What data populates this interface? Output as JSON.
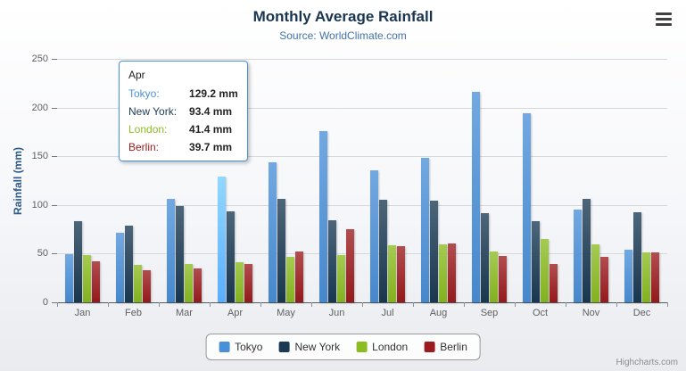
{
  "header": {
    "title": "Monthly Average Rainfall",
    "subtitle": "Source: WorldClimate.com"
  },
  "y_axis": {
    "title": "Rainfall (mm)",
    "ticks": [
      0,
      50,
      100,
      150,
      200,
      250
    ],
    "max": 250
  },
  "x_axis": {
    "categories": [
      "Jan",
      "Feb",
      "Mar",
      "Apr",
      "May",
      "Jun",
      "Jul",
      "Aug",
      "Sep",
      "Oct",
      "Nov",
      "Dec"
    ]
  },
  "tooltip": {
    "header": "Apr",
    "hover_point": {
      "series": "Tokyo",
      "category": "Apr"
    },
    "border_color": "#4a90d9",
    "rows": [
      {
        "name": "Tokyo:",
        "value": "129.2 mm",
        "color": "#4a90d9"
      },
      {
        "name": "New York:",
        "value": "93.4 mm",
        "color": "#1a3a54"
      },
      {
        "name": "London:",
        "value": "41.4 mm",
        "color": "#8bbc21"
      },
      {
        "name": "Berlin:",
        "value": "39.7 mm",
        "color": "#9c1b1e"
      }
    ]
  },
  "legend": {
    "items": [
      "Tokyo",
      "New York",
      "London",
      "Berlin"
    ]
  },
  "credits": "Highcharts.com",
  "chart_data": {
    "type": "bar",
    "title": "Monthly Average Rainfall",
    "subtitle": "Source: WorldClimate.com",
    "categories": [
      "Jan",
      "Feb",
      "Mar",
      "Apr",
      "May",
      "Jun",
      "Jul",
      "Aug",
      "Sep",
      "Oct",
      "Nov",
      "Dec"
    ],
    "series": [
      {
        "name": "Tokyo",
        "color": "#4a90d9",
        "values": [
          49.9,
          71.5,
          106.4,
          129.2,
          144.0,
          176.0,
          135.6,
          148.5,
          216.4,
          194.1,
          95.6,
          54.4
        ]
      },
      {
        "name": "New York",
        "color": "#1a3a54",
        "values": [
          83.6,
          78.8,
          98.5,
          93.4,
          106.0,
          84.5,
          105.0,
          104.3,
          91.2,
          83.5,
          106.6,
          92.3
        ]
      },
      {
        "name": "London",
        "color": "#8bbc21",
        "values": [
          48.9,
          38.8,
          39.3,
          41.4,
          47.0,
          48.3,
          59.0,
          59.6,
          52.4,
          65.2,
          59.3,
          51.2
        ]
      },
      {
        "name": "Berlin",
        "color": "#9c1b1e",
        "values": [
          42.4,
          33.2,
          34.5,
          39.7,
          52.6,
          75.5,
          57.4,
          60.4,
          47.6,
          39.1,
          46.8,
          51.1
        ]
      }
    ],
    "xlabel": "",
    "ylabel": "Rainfall (mm)",
    "ylim": [
      0,
      250
    ],
    "grid": true,
    "legend_position": "bottom"
  }
}
